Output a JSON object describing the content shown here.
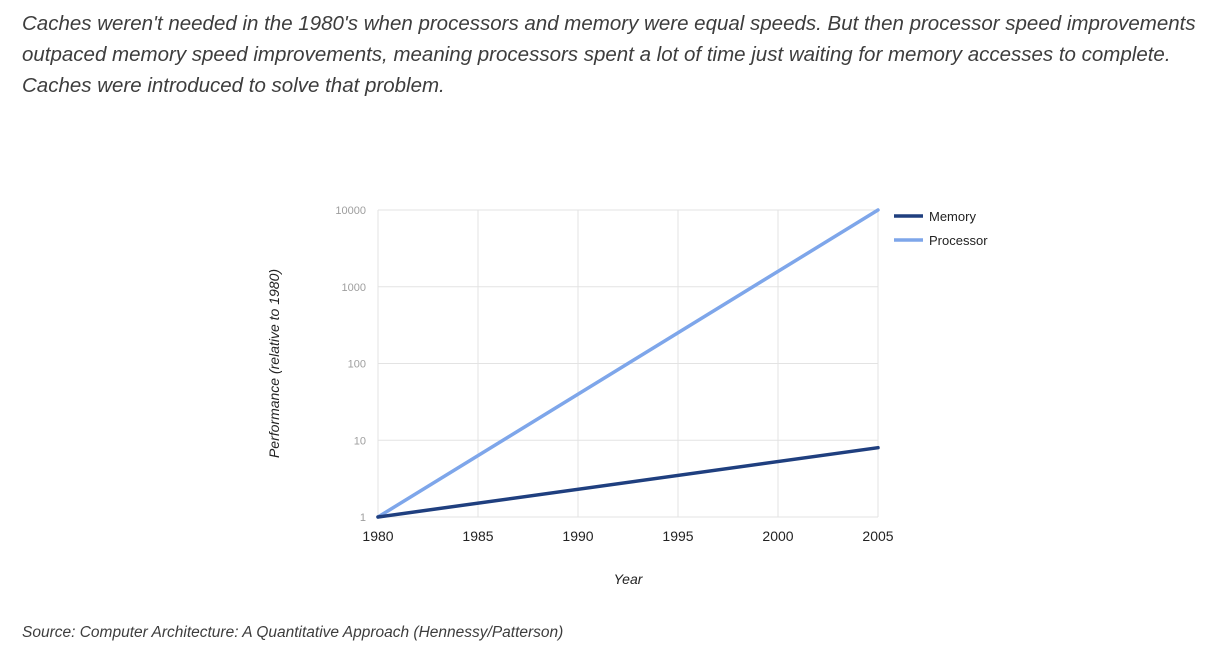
{
  "intro": {
    "lines": [
      "Caches weren't needed in the 1980's when processors and memory were equal speeds. But then processor speed improvements",
      "outpaced memory speed improvements, meaning processors spent a lot of time just waiting for memory accesses to complete.",
      "Caches were introduced to solve that problem."
    ]
  },
  "source": "Source: Computer Architecture: A Quantitative Approach (Hennessy/Patterson)",
  "chart_data": {
    "type": "line",
    "title": "",
    "xlabel": "Year",
    "ylabel": "Performance (relative to 1980)",
    "x_ticks": [
      "1980",
      "1985",
      "1990",
      "1995",
      "2000",
      "2005"
    ],
    "y_ticks": [
      "1",
      "10",
      "100",
      "1000",
      "10000"
    ],
    "xlim": [
      1980,
      2005
    ],
    "ylim": [
      1,
      10000
    ],
    "y_scale": "log",
    "grid": true,
    "legend_position": "top-right",
    "series": [
      {
        "name": "Memory",
        "color": "#1f3f7f",
        "x": [
          1980,
          2005
        ],
        "y": [
          1,
          8
        ]
      },
      {
        "name": "Processor",
        "color": "#7ea6ea",
        "x": [
          1980,
          2005
        ],
        "y": [
          1,
          10000
        ]
      }
    ]
  }
}
